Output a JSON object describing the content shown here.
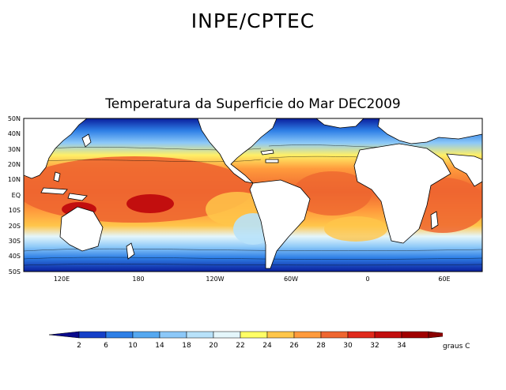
{
  "header": "INPE/CPTEC",
  "title": "Temperatura da Superficie do Mar DEC2009",
  "map": {
    "variable": "sea surface temperature",
    "period": "DEC2009",
    "lat_labels": [
      "50N",
      "40N",
      "30N",
      "20N",
      "10N",
      "EQ",
      "10S",
      "20S",
      "30S",
      "40S",
      "50S"
    ],
    "lon_labels": [
      "120E",
      "180",
      "120W",
      "60W",
      "0",
      "60E"
    ],
    "colors": {
      "ocean_cold": "#0a1e9c",
      "ocean_warm": "#e8481c",
      "land": "#ffffff",
      "coast": "#000000"
    }
  },
  "colorbar": {
    "ticks": [
      "2",
      "6",
      "10",
      "14",
      "18",
      "20",
      "22",
      "24",
      "26",
      "28",
      "30",
      "32",
      "34"
    ],
    "colors": [
      "#0a0a8c",
      "#1540c8",
      "#2e7fe6",
      "#55a8f0",
      "#8cc8f8",
      "#b8e2fa",
      "#e4f6fb",
      "#ffff66",
      "#ffc64a",
      "#ff9a3c",
      "#ee6630",
      "#e02a1c",
      "#c20e0e",
      "#a00000",
      "#8a0000"
    ],
    "units": "graus C"
  }
}
